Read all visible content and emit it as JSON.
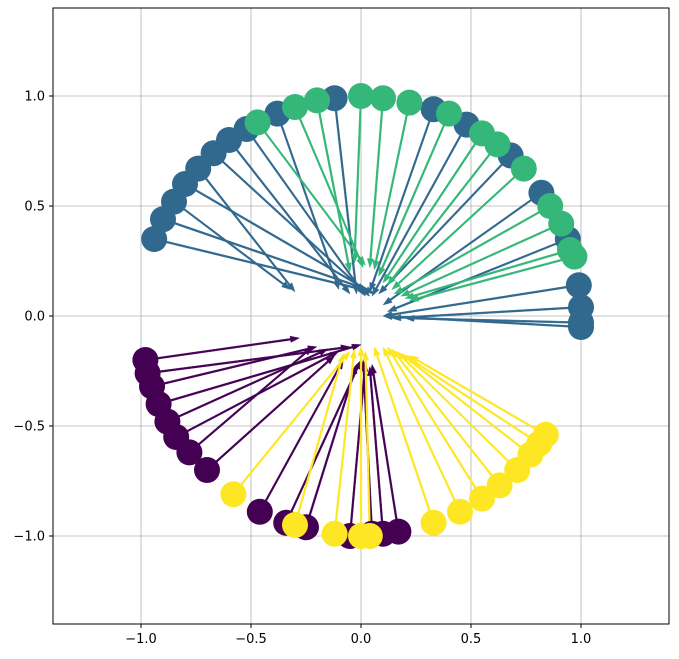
{
  "chart_data": {
    "type": "scatter",
    "subtype": "quiver-on-circle",
    "title": "",
    "xlabel": "",
    "ylabel": "",
    "xlim": [
      -1.4,
      1.4
    ],
    "ylim": [
      -1.4,
      1.4
    ],
    "grid": true,
    "legend": "none",
    "x_ticks": [
      -1.0,
      -0.5,
      0.0,
      0.5,
      1.0
    ],
    "x_tick_labels": [
      "−1.0",
      "−0.5",
      "0.0",
      "0.5",
      "1.0"
    ],
    "y_ticks": [
      1.0,
      0.5,
      0.0,
      -0.5,
      -1.0
    ],
    "y_tick_labels": [
      "1.0",
      "0.5",
      "0.0",
      "−0.5",
      "−1.0"
    ],
    "colors": {
      "cluster_a": "#440154",
      "cluster_b": "#31688e",
      "cluster_c": "#35b779",
      "cluster_d": "#fde725"
    },
    "series": [
      {
        "key": "cluster_b",
        "color": "#31688e",
        "points": [
          {
            "x": -0.94,
            "y": 0.35,
            "tx": 0.05,
            "ty": 0.11
          },
          {
            "x": -0.9,
            "y": 0.44,
            "tx": 0.03,
            "ty": 0.12
          },
          {
            "x": -0.85,
            "y": 0.52,
            "tx": -0.32,
            "ty": 0.12
          },
          {
            "x": -0.8,
            "y": 0.6,
            "tx": 0.06,
            "ty": 0.1
          },
          {
            "x": -0.74,
            "y": 0.67,
            "tx": -0.3,
            "ty": 0.11
          },
          {
            "x": -0.67,
            "y": 0.74,
            "tx": 0.04,
            "ty": 0.09
          },
          {
            "x": -0.6,
            "y": 0.8,
            "tx": -0.05,
            "ty": 0.1
          },
          {
            "x": -0.52,
            "y": 0.85,
            "tx": 0.02,
            "ty": 0.09
          },
          {
            "x": -0.38,
            "y": 0.92,
            "tx": -0.1,
            "ty": 0.12
          },
          {
            "x": -0.12,
            "y": 0.99,
            "tx": -0.02,
            "ty": 0.1
          },
          {
            "x": 0.33,
            "y": 0.94,
            "tx": 0.04,
            "ty": 0.11
          },
          {
            "x": 0.48,
            "y": 0.87,
            "tx": 0.05,
            "ty": 0.09
          },
          {
            "x": 0.68,
            "y": 0.73,
            "tx": 0.08,
            "ty": 0.1
          },
          {
            "x": 0.82,
            "y": 0.56,
            "tx": 0.1,
            "ty": 0.05
          },
          {
            "x": 0.94,
            "y": 0.35,
            "tx": 0.12,
            "ty": 0.02
          },
          {
            "x": 0.99,
            "y": 0.14,
            "tx": 0.1,
            "ty": 0.0
          },
          {
            "x": 1.0,
            "y": 0.04,
            "tx": 0.14,
            "ty": -0.01
          },
          {
            "x": 1.0,
            "y": -0.03,
            "tx": 0.2,
            "ty": -0.01
          },
          {
            "x": 1.0,
            "y": -0.05,
            "tx": 0.1,
            "ty": 0.0
          }
        ]
      },
      {
        "key": "cluster_c",
        "color": "#35b779",
        "points": [
          {
            "x": -0.47,
            "y": 0.88,
            "tx": 0.02,
            "ty": 0.23
          },
          {
            "x": -0.3,
            "y": 0.95,
            "tx": 0.01,
            "ty": 0.22
          },
          {
            "x": -0.2,
            "y": 0.98,
            "tx": -0.05,
            "ty": 0.2
          },
          {
            "x": 0.0,
            "y": 1.0,
            "tx": -0.03,
            "ty": 0.24
          },
          {
            "x": 0.1,
            "y": 0.99,
            "tx": 0.04,
            "ty": 0.22
          },
          {
            "x": 0.22,
            "y": 0.97,
            "tx": 0.06,
            "ty": 0.21
          },
          {
            "x": 0.4,
            "y": 0.92,
            "tx": 0.08,
            "ty": 0.18
          },
          {
            "x": 0.55,
            "y": 0.83,
            "tx": 0.1,
            "ty": 0.15
          },
          {
            "x": 0.62,
            "y": 0.78,
            "tx": 0.12,
            "ty": 0.14
          },
          {
            "x": 0.74,
            "y": 0.67,
            "tx": 0.14,
            "ty": 0.12
          },
          {
            "x": 0.86,
            "y": 0.5,
            "tx": 0.15,
            "ty": 0.1
          },
          {
            "x": 0.91,
            "y": 0.42,
            "tx": 0.18,
            "ty": 0.09
          },
          {
            "x": 0.95,
            "y": 0.3,
            "tx": 0.2,
            "ty": 0.08
          },
          {
            "x": 0.97,
            "y": 0.27,
            "tx": 0.22,
            "ty": 0.07
          }
        ]
      },
      {
        "key": "cluster_a",
        "color": "#440154",
        "points": [
          {
            "x": -0.98,
            "y": -0.2,
            "tx": -0.28,
            "ty": -0.1
          },
          {
            "x": -0.97,
            "y": -0.26,
            "tx": -0.05,
            "ty": -0.14
          },
          {
            "x": -0.95,
            "y": -0.32,
            "tx": -0.2,
            "ty": -0.14
          },
          {
            "x": -0.92,
            "y": -0.4,
            "tx": 0.0,
            "ty": -0.13
          },
          {
            "x": -0.88,
            "y": -0.48,
            "tx": -0.15,
            "ty": -0.15
          },
          {
            "x": -0.84,
            "y": -0.55,
            "tx": -0.1,
            "ty": -0.16
          },
          {
            "x": -0.78,
            "y": -0.62,
            "tx": -0.22,
            "ty": -0.14
          },
          {
            "x": -0.7,
            "y": -0.7,
            "tx": -0.12,
            "ty": -0.18
          },
          {
            "x": -0.46,
            "y": -0.89,
            "tx": -0.08,
            "ty": -0.2
          },
          {
            "x": -0.34,
            "y": -0.94,
            "tx": 0.0,
            "ty": -0.2
          },
          {
            "x": -0.25,
            "y": -0.96,
            "tx": -0.02,
            "ty": -0.22
          },
          {
            "x": -0.05,
            "y": -1.0,
            "tx": 0.02,
            "ty": -0.21
          },
          {
            "x": 0.05,
            "y": -0.99,
            "tx": 0.01,
            "ty": -0.2
          },
          {
            "x": 0.1,
            "y": -0.99,
            "tx": 0.04,
            "ty": -0.23
          },
          {
            "x": 0.17,
            "y": -0.98,
            "tx": 0.05,
            "ty": -0.22
          }
        ]
      },
      {
        "key": "cluster_d",
        "color": "#fde725",
        "points": [
          {
            "x": -0.58,
            "y": -0.81,
            "tx": -0.05,
            "ty": -0.16
          },
          {
            "x": -0.3,
            "y": -0.95,
            "tx": -0.08,
            "ty": -0.17
          },
          {
            "x": -0.12,
            "y": -0.99,
            "tx": -0.03,
            "ty": -0.15
          },
          {
            "x": 0.0,
            "y": -1.0,
            "tx": 0.0,
            "ty": -0.14
          },
          {
            "x": 0.04,
            "y": -1.0,
            "tx": 0.02,
            "ty": -0.16
          },
          {
            "x": 0.33,
            "y": -0.94,
            "tx": 0.06,
            "ty": -0.14
          },
          {
            "x": 0.45,
            "y": -0.89,
            "tx": 0.1,
            "ty": -0.14
          },
          {
            "x": 0.55,
            "y": -0.83,
            "tx": 0.12,
            "ty": -0.14
          },
          {
            "x": 0.63,
            "y": -0.77,
            "tx": 0.14,
            "ty": -0.15
          },
          {
            "x": 0.71,
            "y": -0.7,
            "tx": 0.16,
            "ty": -0.16
          },
          {
            "x": 0.77,
            "y": -0.63,
            "tx": 0.18,
            "ty": -0.17
          },
          {
            "x": 0.81,
            "y": -0.58,
            "tx": 0.2,
            "ty": -0.18
          },
          {
            "x": 0.84,
            "y": -0.54,
            "tx": 0.22,
            "ty": -0.18
          }
        ]
      }
    ]
  }
}
